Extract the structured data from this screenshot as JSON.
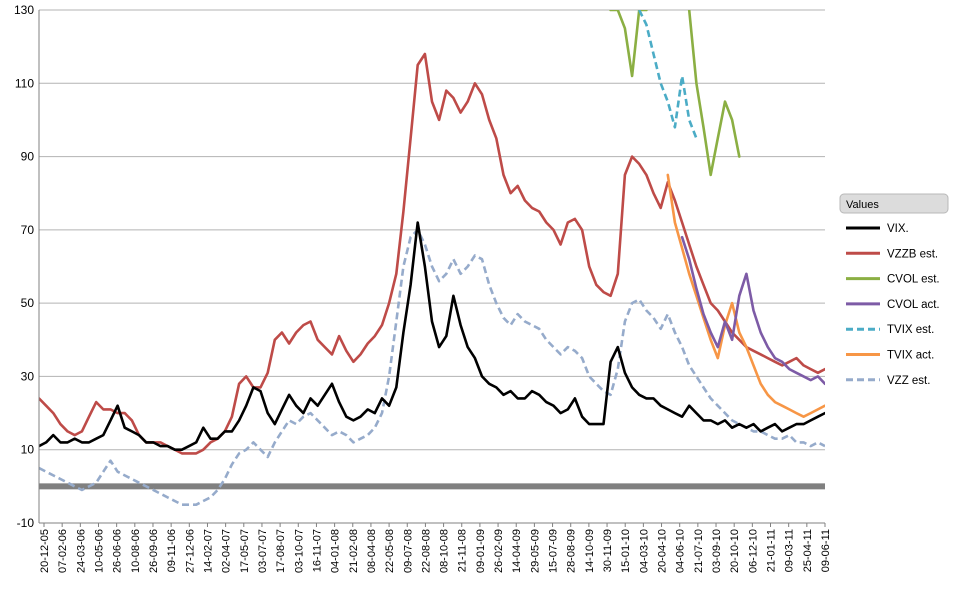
{
  "chart_data": {
    "type": "line",
    "title": "",
    "xlabel": "",
    "ylabel": "",
    "ylim": [
      -10,
      130
    ],
    "yticks": [
      -10,
      10,
      30,
      50,
      70,
      90,
      110,
      130
    ],
    "grid": "horizontal",
    "legend_title": "Values",
    "legend_position": "right",
    "x_tick_labels": [
      "20-12-05",
      "07-02-06",
      "24-03-06",
      "10-05-06",
      "26-06-06",
      "10-08-06",
      "26-09-06",
      "09-11-06",
      "27-12-06",
      "14-02-07",
      "02-04-07",
      "17-05-07",
      "03-07-07",
      "17-08-07",
      "03-10-07",
      "16-11-07",
      "04-01-08",
      "21-02-08",
      "08-04-08",
      "22-05-08",
      "09-07-08",
      "22-08-08",
      "08-10-08",
      "21-11-08",
      "09-01-09",
      "26-02-09",
      "14-04-09",
      "29-05-09",
      "15-07-09",
      "28-08-09",
      "14-10-09",
      "30-11-09",
      "15-01-10",
      "04-03-10",
      "20-04-10",
      "04-06-10",
      "21-07-10",
      "03-09-10",
      "20-10-10",
      "06-12-10",
      "21-01-11",
      "09-03-11",
      "25-04-11",
      "09-06-11"
    ],
    "zero_band": 0,
    "series": [
      {
        "name": "VIX.",
        "color": "#000000",
        "dash": false,
        "start": 0,
        "values": [
          11,
          12,
          14,
          12,
          12,
          13,
          12,
          12,
          13,
          14,
          18,
          22,
          16,
          15,
          14,
          12,
          12,
          11,
          11,
          10,
          10,
          11,
          12,
          16,
          13,
          13,
          15,
          15,
          18,
          22,
          27,
          26,
          20,
          17,
          21,
          25,
          22,
          20,
          24,
          22,
          25,
          28,
          23,
          19,
          18,
          19,
          21,
          20,
          24,
          22,
          27,
          42,
          55,
          72,
          60,
          45,
          38,
          41,
          52,
          44,
          38,
          35,
          30,
          28,
          27,
          25,
          26,
          24,
          24,
          26,
          25,
          23,
          22,
          20,
          21,
          24,
          19,
          17,
          17,
          17,
          34,
          38,
          31,
          27,
          25,
          24,
          24,
          22,
          21,
          20,
          19,
          22,
          20,
          18,
          18,
          17,
          18,
          16,
          17,
          16,
          17,
          15,
          16,
          17,
          15,
          16,
          17,
          17,
          18,
          19,
          20
        ]
      },
      {
        "name": "VZZB est.",
        "color": "#BE4B48",
        "dash": false,
        "start": 0,
        "values": [
          24,
          22,
          20,
          17,
          15,
          14,
          15,
          19,
          23,
          21,
          21,
          20,
          20,
          18,
          14,
          12,
          12,
          12,
          11,
          10,
          9,
          9,
          9,
          10,
          12,
          13,
          15,
          19,
          28,
          30,
          27,
          27,
          31,
          40,
          42,
          39,
          42,
          44,
          45,
          40,
          38,
          36,
          41,
          37,
          34,
          36,
          39,
          41,
          44,
          50,
          58,
          75,
          95,
          115,
          118,
          105,
          100,
          108,
          106,
          102,
          105,
          110,
          107,
          100,
          95,
          85,
          80,
          82,
          78,
          76,
          75,
          72,
          70,
          66,
          72,
          73,
          70,
          60,
          55,
          53,
          52,
          58,
          85,
          90,
          88,
          85,
          80,
          76,
          83,
          78,
          72,
          66,
          60,
          55,
          50,
          48,
          45,
          42,
          40,
          38,
          37,
          36,
          35,
          34,
          33,
          34,
          35,
          33,
          32,
          31,
          32
        ]
      },
      {
        "name": "CVOL est.",
        "color": "#8BAF43",
        "dash": false,
        "start": 80,
        "values": [
          130,
          130,
          125,
          112,
          130,
          130,
          null,
          null,
          null,
          null,
          null,
          130,
          110,
          98,
          85,
          95,
          105,
          100,
          90,
          null,
          null,
          null,
          null,
          null,
          null,
          null,
          null,
          null,
          null,
          null,
          null
        ]
      },
      {
        "name": "CVOL act.",
        "color": "#7D5BA6",
        "dash": false,
        "start": 90,
        "values": [
          68,
          62,
          54,
          47,
          42,
          38,
          45,
          40,
          52,
          58,
          48,
          42,
          38,
          35,
          34,
          32,
          31,
          30,
          29,
          30,
          28
        ]
      },
      {
        "name": "TVIX est.",
        "color": "#4BACC6",
        "dash": true,
        "start": 84,
        "values": [
          130,
          126,
          118,
          110,
          105,
          98,
          112,
          100,
          95,
          null,
          null,
          null,
          null,
          null,
          null,
          null,
          null,
          null,
          null,
          null,
          null,
          null,
          null,
          null,
          null,
          null,
          null
        ]
      },
      {
        "name": "TVIX act.",
        "color": "#F79646",
        "dash": false,
        "start": 88,
        "values": [
          85,
          72,
          65,
          58,
          52,
          46,
          40,
          35,
          44,
          50,
          42,
          38,
          33,
          28,
          25,
          23,
          22,
          21,
          20,
          19,
          20,
          21,
          22
        ]
      },
      {
        "name": "VZZ est.",
        "color": "#96ABCB",
        "dash": true,
        "start": 0,
        "values": [
          5,
          4,
          3,
          2,
          1,
          0,
          -1,
          0,
          1,
          4,
          7,
          4,
          3,
          2,
          1,
          0,
          -1,
          -2,
          -3,
          -4,
          -5,
          -5,
          -5,
          -4,
          -3,
          -1,
          2,
          6,
          9,
          10,
          12,
          10,
          8,
          12,
          15,
          18,
          17,
          19,
          20,
          18,
          16,
          14,
          15,
          14,
          12,
          13,
          14,
          16,
          20,
          30,
          45,
          60,
          68,
          70,
          66,
          60,
          56,
          58,
          62,
          58,
          60,
          63,
          62,
          55,
          50,
          46,
          44,
          47,
          45,
          44,
          43,
          40,
          38,
          36,
          38,
          37,
          35,
          30,
          28,
          26,
          25,
          32,
          45,
          50,
          51,
          48,
          46,
          43,
          47,
          42,
          38,
          33,
          30,
          27,
          24,
          22,
          20,
          18,
          17,
          16,
          15,
          15,
          14,
          13,
          13,
          14,
          12,
          12,
          11,
          12,
          11
        ]
      }
    ]
  }
}
